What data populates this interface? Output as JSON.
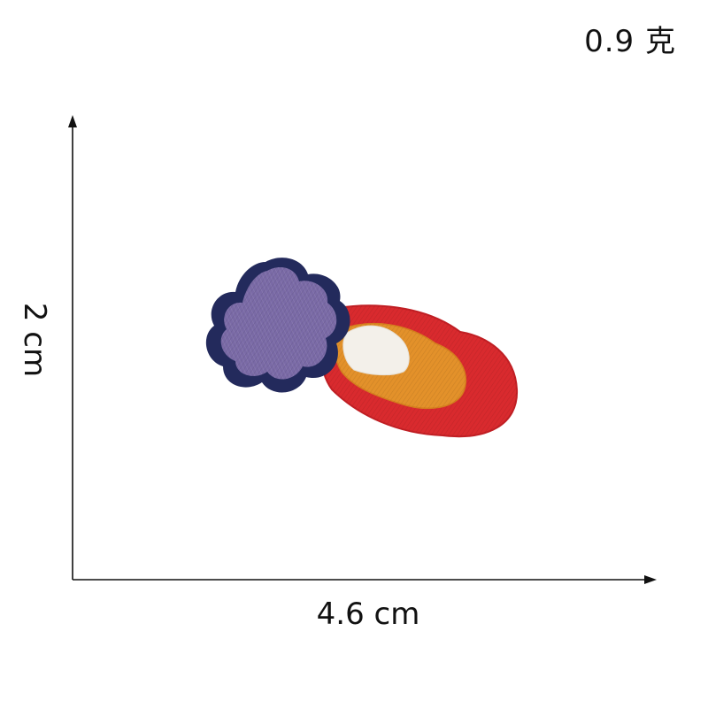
{
  "product": {
    "weight_label": "0.9 克",
    "height_label": "2 cm",
    "width_label": "4.6 cm",
    "patch": {
      "subject": "embroidered flaming cloud patch",
      "colors": {
        "cloud_fill": "#7a6aa6",
        "cloud_border": "#232a5c",
        "flame_outer": "#d92a2e",
        "flame_middle": "#e3912a",
        "flame_inner": "#f3f0ea"
      }
    }
  }
}
